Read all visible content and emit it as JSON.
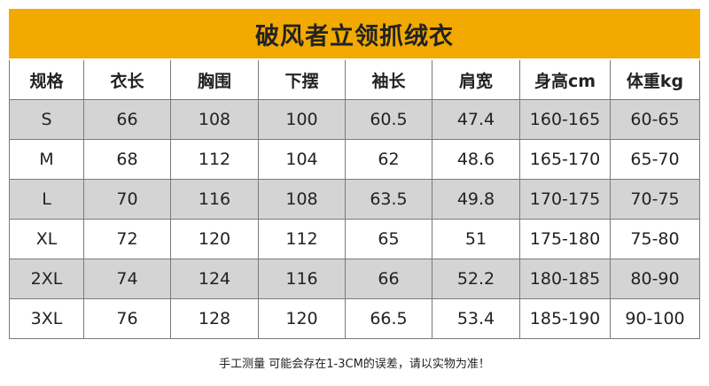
{
  "title": "破风者立领抓绒衣",
  "table": {
    "header": [
      "规格",
      "衣长",
      "胸围",
      "下摆",
      "袖长",
      "肩宽",
      "身高cm",
      "体重kg"
    ],
    "rows": [
      [
        "S",
        "66",
        "108",
        "100",
        "60.5",
        "47.4",
        "160-165",
        "60-65"
      ],
      [
        "M",
        "68",
        "112",
        "104",
        "62",
        "48.6",
        "165-170",
        "65-70"
      ],
      [
        "L",
        "70",
        "116",
        "108",
        "63.5",
        "49.8",
        "170-175",
        "70-75"
      ],
      [
        "XL",
        "72",
        "120",
        "112",
        "65",
        "51",
        "175-180",
        "75-80"
      ],
      [
        "2XL",
        "74",
        "124",
        "116",
        "66",
        "52.2",
        "180-185",
        "80-90"
      ],
      [
        "3XL",
        "76",
        "128",
        "120",
        "66.5",
        "53.4",
        "185-190",
        "90-100"
      ]
    ]
  },
  "note": "手工测量 可能会存在1-3CM的误差，请以实物为准！"
}
